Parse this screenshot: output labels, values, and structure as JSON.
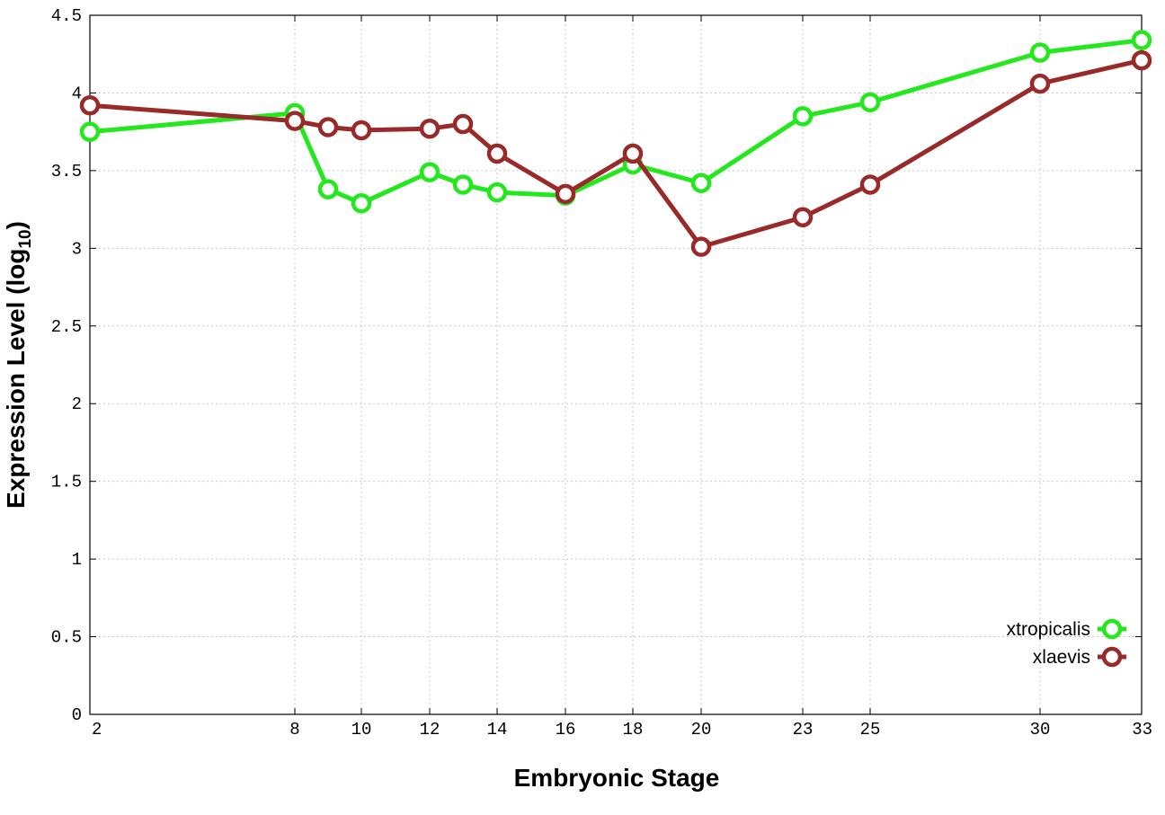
{
  "chart_data": {
    "type": "line",
    "xlabel": "Embryonic Stage",
    "ylabel": "Expression Level (log",
    "ylabel_subscript": "10",
    "ylabel_suffix": ")",
    "x_ticks": [
      "2",
      "8",
      "10",
      "12",
      "14",
      "16",
      "18",
      "20",
      "23",
      "25",
      "30",
      "33"
    ],
    "y_ticks": [
      "0",
      "0.5",
      "1",
      "1.5",
      "2",
      "2.5",
      "3",
      "3.5",
      "4",
      "4.5"
    ],
    "ylim": [
      0,
      4.5
    ],
    "grid": true,
    "legend_position": "bottom-right",
    "x": [
      2,
      8,
      9,
      10,
      12,
      13,
      14,
      16,
      18,
      20,
      23,
      25,
      30,
      33
    ],
    "series": [
      {
        "name": "xtropicalis",
        "color": "#22e81c",
        "values": [
          3.75,
          3.87,
          3.38,
          3.29,
          3.49,
          3.41,
          3.36,
          3.34,
          3.54,
          3.42,
          3.85,
          3.94,
          4.26,
          4.34
        ]
      },
      {
        "name": "xlaevis",
        "color": "#982a2a",
        "values": [
          3.92,
          3.82,
          3.78,
          3.76,
          3.77,
          3.8,
          3.61,
          3.35,
          3.61,
          3.01,
          3.2,
          3.41,
          4.06,
          4.21
        ]
      }
    ]
  }
}
